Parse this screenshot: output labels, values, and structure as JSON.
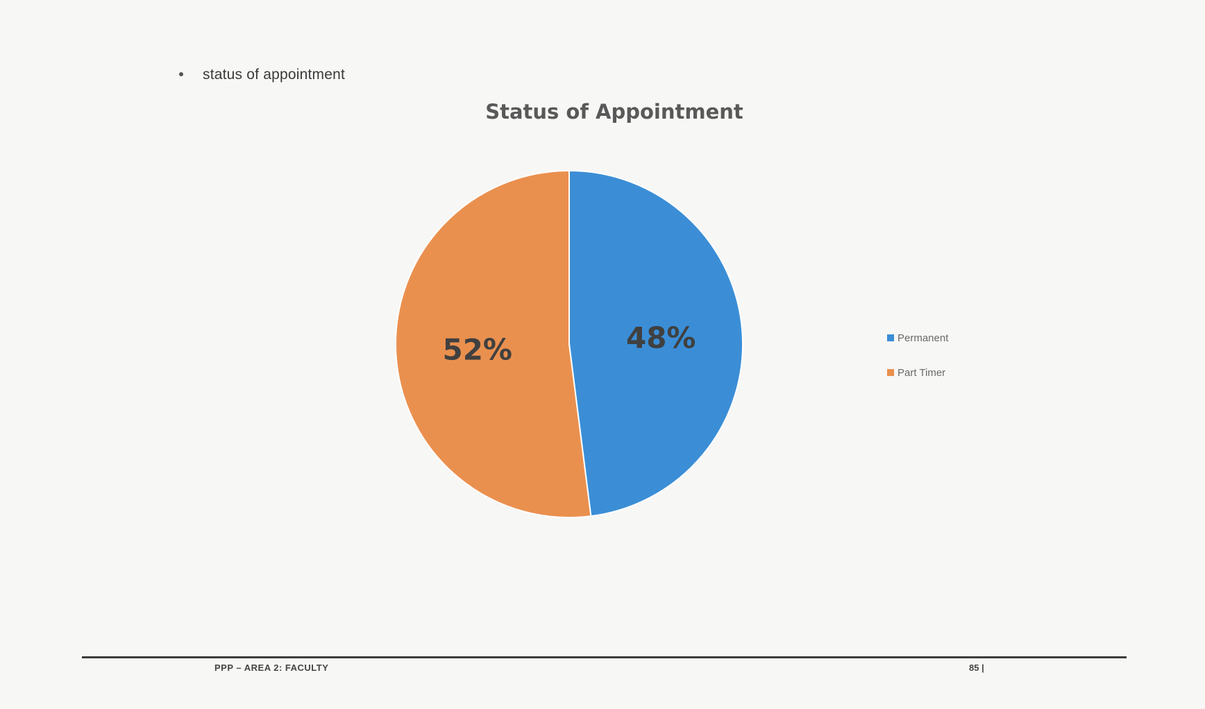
{
  "document": {
    "bullet_text": "status of appointment",
    "footer_left": "PPP – AREA 2: FACULTY",
    "footer_right": "85 |"
  },
  "chart_data": {
    "type": "pie",
    "title": "Status of Appointment",
    "slices": [
      {
        "name": "Permanent",
        "value": 48,
        "label": "48%",
        "color": "#3b8ed6"
      },
      {
        "name": "Part Timer",
        "value": 52,
        "label": "52%",
        "color": "#ea904f"
      }
    ],
    "legend_position": "right"
  }
}
